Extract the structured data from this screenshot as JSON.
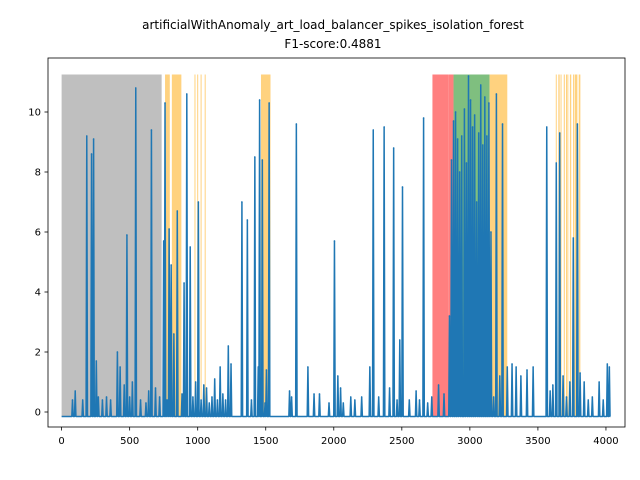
{
  "chart_data": {
    "type": "line",
    "title": "artificialWithAnomaly_art_load_balancer_spikes_isolation_forest",
    "subtitle": "F1-score:0.4881",
    "xlabel": "",
    "ylabel": "",
    "xlim": [
      -100,
      4140
    ],
    "ylim": [
      -0.5,
      11.8
    ],
    "xticks": [
      0,
      500,
      1000,
      1500,
      2000,
      2500,
      3000,
      3500,
      4000
    ],
    "yticks": [
      0,
      2,
      4,
      6,
      8,
      10
    ],
    "grid": false,
    "series_color": "#1f77b4",
    "baseline": -0.15,
    "last_x": 4032,
    "regions": [
      {
        "kind": "gray",
        "color": "#bfbfbf",
        "x0": 0,
        "x1": 735,
        "y0": -0.15,
        "y1": 11.25
      },
      {
        "kind": "red",
        "color": "#ff7f7f",
        "x0": 2725,
        "x1": 2845,
        "y0": -0.15,
        "y1": 11.25
      },
      {
        "kind": "red",
        "color": "#ff7f7f",
        "x0": 2845,
        "x1": 2880,
        "y0": -0.15,
        "y1": 11.25
      },
      {
        "kind": "green",
        "color": "#7fbf7f",
        "x0": 2880,
        "x1": 3145,
        "y0": -0.15,
        "y1": 11.25
      },
      {
        "kind": "orange",
        "color": "#ffd27f",
        "x0": 3145,
        "x1": 3275,
        "y0": -0.15,
        "y1": 11.25
      },
      {
        "kind": "orange",
        "color": "#ffd27f",
        "x0": 760,
        "x1": 795,
        "y0": -0.15,
        "y1": 11.25
      },
      {
        "kind": "orange",
        "color": "#ffd27f",
        "x0": 810,
        "x1": 880,
        "y0": -0.15,
        "y1": 11.25
      },
      {
        "kind": "orange",
        "color": "#ffd27f",
        "x0": 1465,
        "x1": 1535,
        "y0": -0.15,
        "y1": 11.25
      },
      {
        "kind": "orange",
        "color": "#ffd27f",
        "x0": 3650,
        "x1": 3660,
        "y0": -0.15,
        "y1": 11.25
      },
      {
        "kind": "orange",
        "color": "#ffd27f",
        "x0": 3690,
        "x1": 3698,
        "y0": -0.15,
        "y1": 11.25
      },
      {
        "kind": "orange",
        "color": "#ffd27f",
        "x0": 3735,
        "x1": 3745,
        "y0": -0.15,
        "y1": 11.25
      },
      {
        "kind": "orange",
        "color": "#ffd27f",
        "x0": 3770,
        "x1": 3790,
        "y0": -0.15,
        "y1": 11.25
      },
      {
        "kind": "orange",
        "color": "#ffd27f",
        "x0": 3800,
        "x1": 3812,
        "y0": -0.15,
        "y1": 11.25
      }
    ],
    "orange_lines": [
      980,
      1000,
      1025,
      1055,
      3635,
      3670,
      3710,
      3720,
      3762
    ],
    "spikes": [
      {
        "x": 80,
        "y": 0.4
      },
      {
        "x": 100,
        "y": 0.7
      },
      {
        "x": 155,
        "y": 0.4
      },
      {
        "x": 185,
        "y": 9.2
      },
      {
        "x": 220,
        "y": 8.6
      },
      {
        "x": 235,
        "y": 9.1
      },
      {
        "x": 255,
        "y": 1.7
      },
      {
        "x": 270,
        "y": 0.5
      },
      {
        "x": 300,
        "y": 0.4
      },
      {
        "x": 330,
        "y": 0.5
      },
      {
        "x": 360,
        "y": 0.4
      },
      {
        "x": 410,
        "y": 2.0
      },
      {
        "x": 430,
        "y": 1.5
      },
      {
        "x": 460,
        "y": 0.9
      },
      {
        "x": 480,
        "y": 5.9
      },
      {
        "x": 500,
        "y": 0.5
      },
      {
        "x": 520,
        "y": 1.0
      },
      {
        "x": 545,
        "y": 10.8
      },
      {
        "x": 580,
        "y": 0.4
      },
      {
        "x": 620,
        "y": 0.3
      },
      {
        "x": 640,
        "y": 0.7
      },
      {
        "x": 660,
        "y": 9.4
      },
      {
        "x": 690,
        "y": 0.8
      },
      {
        "x": 720,
        "y": 0.5
      },
      {
        "x": 750,
        "y": 5.7
      },
      {
        "x": 760,
        "y": 10.3
      },
      {
        "x": 775,
        "y": 0.4
      },
      {
        "x": 790,
        "y": 6.1
      },
      {
        "x": 805,
        "y": 4.9
      },
      {
        "x": 825,
        "y": 2.6
      },
      {
        "x": 850,
        "y": 6.7
      },
      {
        "x": 885,
        "y": 0.6
      },
      {
        "x": 900,
        "y": 4.3
      },
      {
        "x": 920,
        "y": 10.6
      },
      {
        "x": 945,
        "y": 5.5
      },
      {
        "x": 965,
        "y": 0.5
      },
      {
        "x": 985,
        "y": 1.0
      },
      {
        "x": 1005,
        "y": 7.0
      },
      {
        "x": 1025,
        "y": 0.4
      },
      {
        "x": 1045,
        "y": 0.9
      },
      {
        "x": 1065,
        "y": 0.8
      },
      {
        "x": 1085,
        "y": 0.3
      },
      {
        "x": 1105,
        "y": 0.5
      },
      {
        "x": 1125,
        "y": 1.1
      },
      {
        "x": 1145,
        "y": 0.4
      },
      {
        "x": 1165,
        "y": 1.5
      },
      {
        "x": 1185,
        "y": 0.6
      },
      {
        "x": 1205,
        "y": 0.4
      },
      {
        "x": 1225,
        "y": 2.2
      },
      {
        "x": 1245,
        "y": 1.6
      },
      {
        "x": 1325,
        "y": 7.0
      },
      {
        "x": 1365,
        "y": 6.4
      },
      {
        "x": 1395,
        "y": 0.4
      },
      {
        "x": 1420,
        "y": 8.5
      },
      {
        "x": 1445,
        "y": 1.5
      },
      {
        "x": 1455,
        "y": 10.4
      },
      {
        "x": 1475,
        "y": 8.4
      },
      {
        "x": 1495,
        "y": 0.3
      },
      {
        "x": 1505,
        "y": 1.4
      },
      {
        "x": 1525,
        "y": 10.3
      },
      {
        "x": 1675,
        "y": 0.7
      },
      {
        "x": 1690,
        "y": 0.5
      },
      {
        "x": 1725,
        "y": 9.6
      },
      {
        "x": 1810,
        "y": 1.5
      },
      {
        "x": 1855,
        "y": 0.6
      },
      {
        "x": 1895,
        "y": 0.6
      },
      {
        "x": 1965,
        "y": 0.3
      },
      {
        "x": 2005,
        "y": 5.7
      },
      {
        "x": 2030,
        "y": 1.2
      },
      {
        "x": 2050,
        "y": 0.8
      },
      {
        "x": 2070,
        "y": 0.3
      },
      {
        "x": 2125,
        "y": 0.5
      },
      {
        "x": 2155,
        "y": 0.4
      },
      {
        "x": 2205,
        "y": 0.5
      },
      {
        "x": 2265,
        "y": 1.5
      },
      {
        "x": 2290,
        "y": 9.4
      },
      {
        "x": 2330,
        "y": 0.5
      },
      {
        "x": 2370,
        "y": 9.5
      },
      {
        "x": 2410,
        "y": 0.8
      },
      {
        "x": 2440,
        "y": 8.8
      },
      {
        "x": 2465,
        "y": 0.4
      },
      {
        "x": 2485,
        "y": 2.4
      },
      {
        "x": 2505,
        "y": 7.5
      },
      {
        "x": 2555,
        "y": 0.4
      },
      {
        "x": 2605,
        "y": 0.7
      },
      {
        "x": 2630,
        "y": 0.4
      },
      {
        "x": 2660,
        "y": 9.8
      },
      {
        "x": 2690,
        "y": 0.3
      },
      {
        "x": 2720,
        "y": 0.5
      },
      {
        "x": 2770,
        "y": 0.9
      },
      {
        "x": 2810,
        "y": 0.6
      },
      {
        "x": 2850,
        "y": 3.2
      },
      {
        "x": 2865,
        "y": 8.4
      },
      {
        "x": 2880,
        "y": 9.7
      },
      {
        "x": 2895,
        "y": 10.0
      },
      {
        "x": 2910,
        "y": 9.1
      },
      {
        "x": 2925,
        "y": 8.0
      },
      {
        "x": 2940,
        "y": 9.2
      },
      {
        "x": 2960,
        "y": 10.1
      },
      {
        "x": 2975,
        "y": 8.3
      },
      {
        "x": 2990,
        "y": 11.2
      },
      {
        "x": 3005,
        "y": 10.4
      },
      {
        "x": 3020,
        "y": 9.5
      },
      {
        "x": 3035,
        "y": 9.9
      },
      {
        "x": 3050,
        "y": 7.0
      },
      {
        "x": 3065,
        "y": 9.3
      },
      {
        "x": 3080,
        "y": 10.9
      },
      {
        "x": 3095,
        "y": 8.9
      },
      {
        "x": 3110,
        "y": 10.5
      },
      {
        "x": 3125,
        "y": 9.2
      },
      {
        "x": 3140,
        "y": 10.3
      },
      {
        "x": 3155,
        "y": 6.0
      },
      {
        "x": 3175,
        "y": 0.5
      },
      {
        "x": 3195,
        "y": 10.6
      },
      {
        "x": 3220,
        "y": 1.2
      },
      {
        "x": 3240,
        "y": 9.6
      },
      {
        "x": 3275,
        "y": 1.5
      },
      {
        "x": 3310,
        "y": 1.6
      },
      {
        "x": 3340,
        "y": 1.5
      },
      {
        "x": 3375,
        "y": 1.2
      },
      {
        "x": 3420,
        "y": 1.4
      },
      {
        "x": 3465,
        "y": 1.5
      },
      {
        "x": 3565,
        "y": 9.5
      },
      {
        "x": 3590,
        "y": 0.7
      },
      {
        "x": 3610,
        "y": 0.9
      },
      {
        "x": 3635,
        "y": 8.3
      },
      {
        "x": 3660,
        "y": 9.3
      },
      {
        "x": 3685,
        "y": 1.2
      },
      {
        "x": 3710,
        "y": 0.5
      },
      {
        "x": 3735,
        "y": 1.0
      },
      {
        "x": 3760,
        "y": 5.8
      },
      {
        "x": 3790,
        "y": 9.6
      },
      {
        "x": 3810,
        "y": 1.3
      },
      {
        "x": 3840,
        "y": 1.0
      },
      {
        "x": 3870,
        "y": 0.4
      },
      {
        "x": 3900,
        "y": 0.5
      },
      {
        "x": 3950,
        "y": 1.0
      },
      {
        "x": 3980,
        "y": 0.4
      },
      {
        "x": 4010,
        "y": 1.6
      },
      {
        "x": 4025,
        "y": 1.5
      }
    ]
  }
}
